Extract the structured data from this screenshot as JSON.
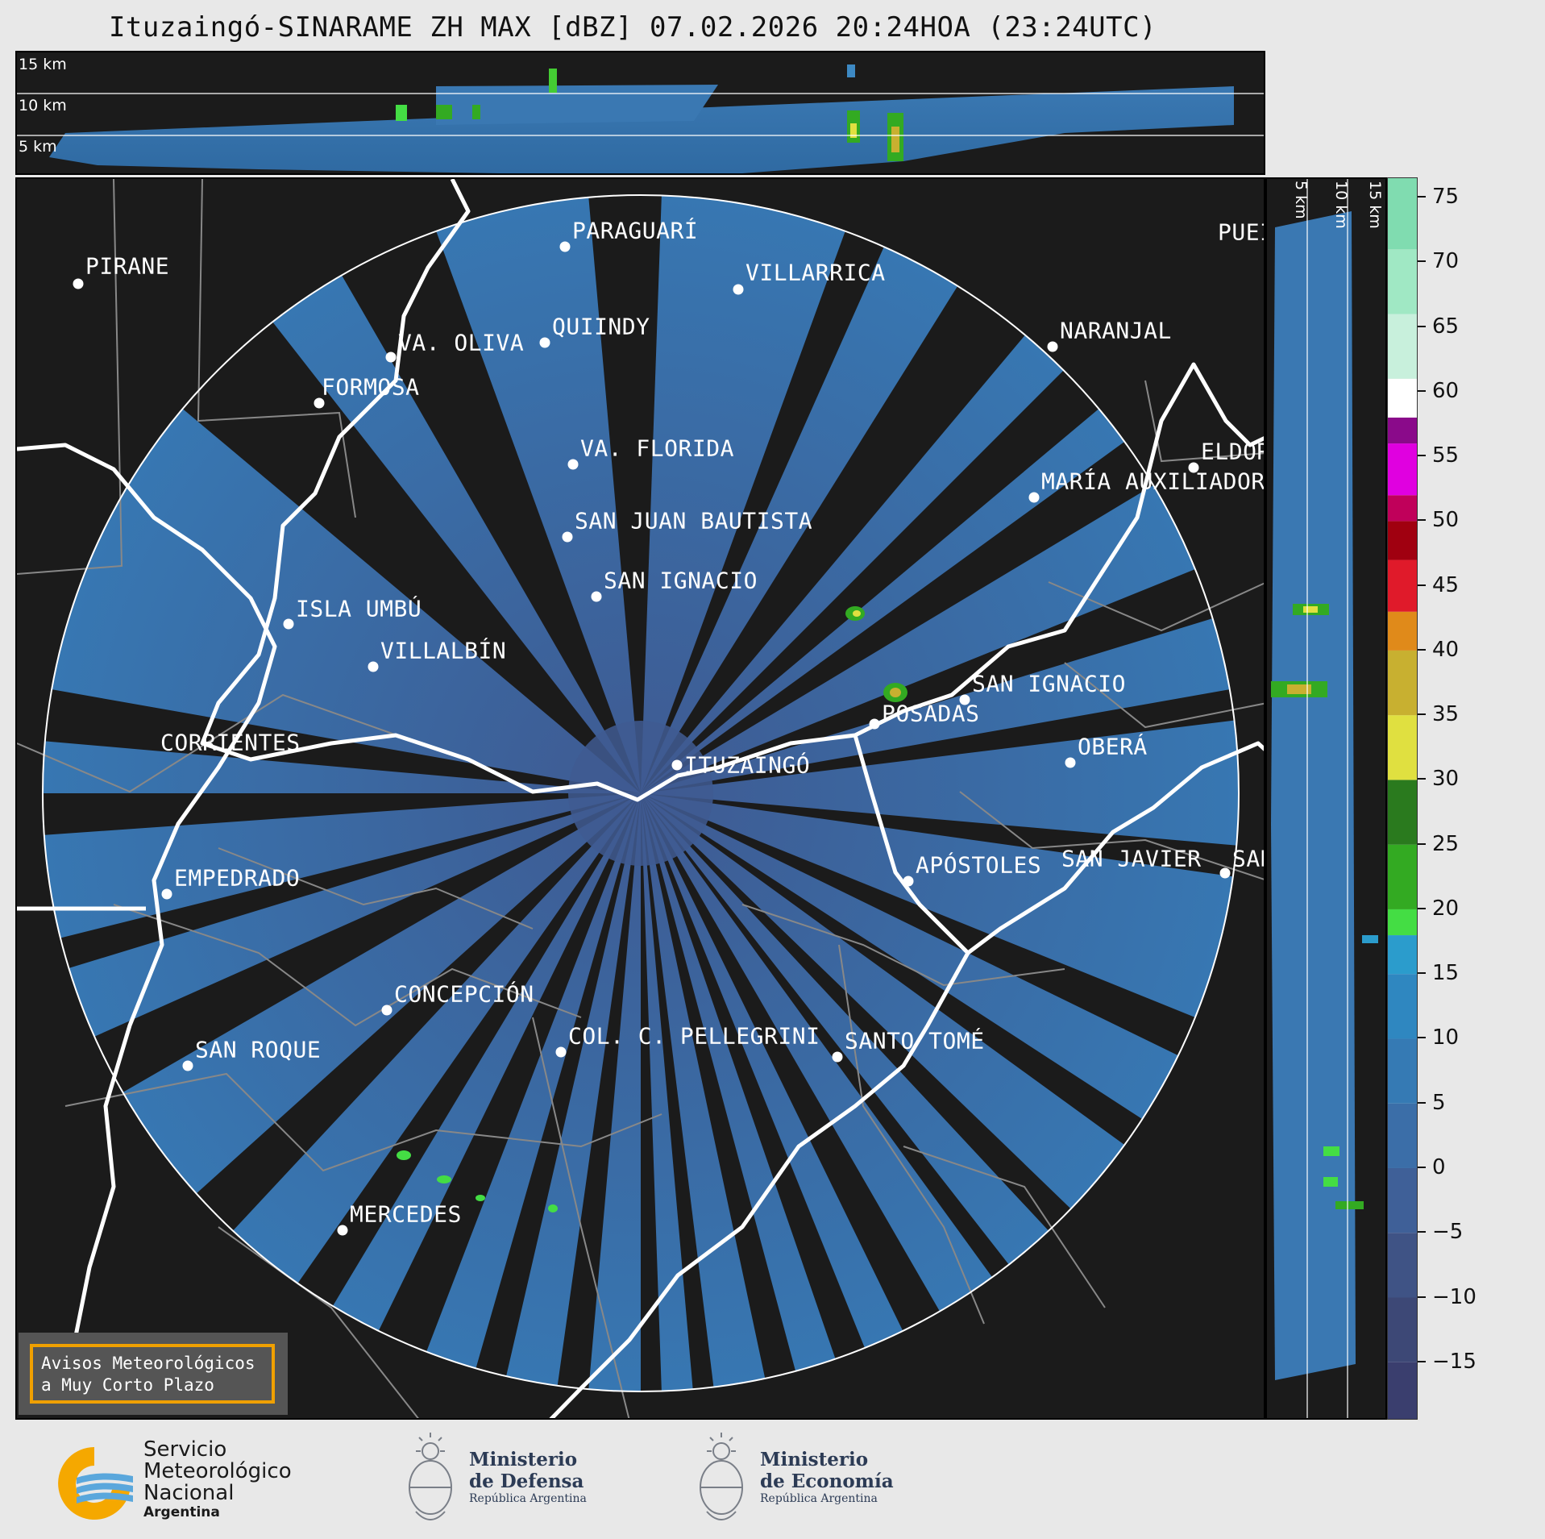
{
  "title": "Ituzaingó-SINARAME ZH MAX [dBZ] 07.02.2026 20:24HOA (23:24UTC)",
  "top_panel": {
    "km_labels": [
      "15 km",
      "10 km",
      "5 km"
    ]
  },
  "side_panel": {
    "km_labels": [
      "5 km",
      "10 km",
      "15 km"
    ]
  },
  "colorbar": {
    "ticks": [
      "75",
      "70",
      "65",
      "60",
      "55",
      "50",
      "45",
      "40",
      "35",
      "30",
      "25",
      "20",
      "15",
      "10",
      "5",
      "0",
      "−5",
      "−10",
      "−15"
    ],
    "tick_values": [
      75,
      70,
      65,
      60,
      55,
      50,
      45,
      40,
      35,
      30,
      25,
      20,
      15,
      10,
      5,
      0,
      -5,
      -10,
      -15
    ],
    "range_dbz": [
      -19.5,
      76.5
    ],
    "color_stops": [
      {
        "from": -19.5,
        "to": -15,
        "color": "#3a3e6e"
      },
      {
        "from": -15,
        "to": -10,
        "color": "#3d4876"
      },
      {
        "from": -10,
        "to": -5,
        "color": "#3f5385"
      },
      {
        "from": -5,
        "to": 0,
        "color": "#3f6098"
      },
      {
        "from": 0,
        "to": 5,
        "color": "#3b6ea8"
      },
      {
        "from": 5,
        "to": 10,
        "color": "#357ab4"
      },
      {
        "from": 10,
        "to": 15,
        "color": "#2f87c0"
      },
      {
        "from": 15,
        "to": 18,
        "color": "#2b9ccc"
      },
      {
        "from": 18,
        "to": 20,
        "color": "#44dd44"
      },
      {
        "from": 20,
        "to": 25,
        "color": "#33aa22"
      },
      {
        "from": 25,
        "to": 30,
        "color": "#2a7a1e"
      },
      {
        "from": 30,
        "to": 35,
        "color": "#e0e040"
      },
      {
        "from": 35,
        "to": 40,
        "color": "#c8b030"
      },
      {
        "from": 40,
        "to": 43,
        "color": "#e08a1a"
      },
      {
        "from": 43,
        "to": 47,
        "color": "#e01a2a"
      },
      {
        "from": 47,
        "to": 50,
        "color": "#a00010"
      },
      {
        "from": 50,
        "to": 52,
        "color": "#c0005a"
      },
      {
        "from": 52,
        "to": 56,
        "color": "#e000e0"
      },
      {
        "from": 56,
        "to": 58,
        "color": "#8a0a8a"
      },
      {
        "from": 58,
        "to": 61,
        "color": "#ffffff"
      },
      {
        "from": 61,
        "to": 66,
        "color": "#c8f0dc"
      },
      {
        "from": 66,
        "to": 71,
        "color": "#a0e8c4"
      },
      {
        "from": 71,
        "to": 76.5,
        "color": "#80dcb0"
      }
    ]
  },
  "cities": [
    {
      "name": "PARAGUARÍ"
    },
    {
      "name": "PIRANE"
    },
    {
      "name": "VILLARRICA"
    },
    {
      "name": "QUIINDY"
    },
    {
      "name": "VA. OLIVA"
    },
    {
      "name": "NARANJAL"
    },
    {
      "name": "FORMOSA"
    },
    {
      "name": "VA. FLORIDA"
    },
    {
      "name": "ELDOR"
    },
    {
      "name": "MARÍA AUXILIADOR"
    },
    {
      "name": "SAN JUAN BAUTISTA"
    },
    {
      "name": "SAN IGNACIO"
    },
    {
      "name": "ISLA UMBÚ"
    },
    {
      "name": "VILLALBÍN"
    },
    {
      "name": "SAN IGNACIO"
    },
    {
      "name": "POSADAS"
    },
    {
      "name": "CORRIENTES"
    },
    {
      "name": "ITUZAINGÓ"
    },
    {
      "name": "OBERÁ"
    },
    {
      "name": "APÓSTOLES"
    },
    {
      "name": "SAN JAVIER"
    },
    {
      "name": "SAN"
    },
    {
      "name": "EMPEDRADO"
    },
    {
      "name": "CONCEPCIÓN"
    },
    {
      "name": "COL. C. PELLEGRINI"
    },
    {
      "name": "SANTO TOMÉ"
    },
    {
      "name": "SAN ROQUE"
    },
    {
      "name": "MERCEDES"
    },
    {
      "name": "PUEI"
    }
  ],
  "notice": {
    "line1": "Avisos Meteorológicos",
    "line2": "a Muy Corto Plazo"
  },
  "footer": {
    "smn": {
      "line1": "Servicio",
      "line2": "Meteorológico",
      "line3": "Nacional",
      "line4": "Argentina"
    },
    "defensa": {
      "line1": "Ministerio",
      "line2": "de Defensa",
      "line3": "República Argentina"
    },
    "economia": {
      "line1": "Ministerio",
      "line2": "de Economía",
      "line3": "República Argentina"
    }
  },
  "colors": {
    "background": "#1b1b1b",
    "echo_base": "#3b6ea8",
    "boundary": "#ffffff",
    "notice_border": "#f0a000"
  }
}
